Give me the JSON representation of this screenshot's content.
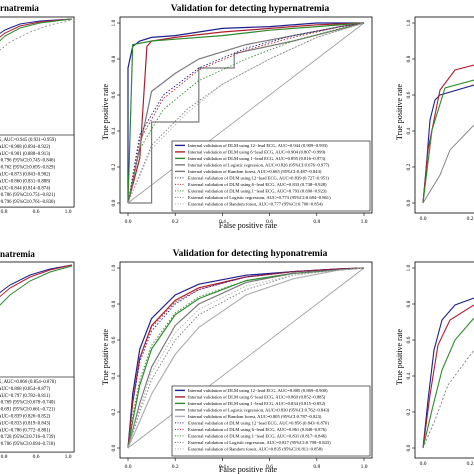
{
  "figure": {
    "panels": [
      {
        "id": "left-top",
        "title": "rnatremia",
        "xticks": [
          "0.8",
          "0.6",
          "1.0"
        ],
        "legend": [
          "G, AUC=0.945 (0.931~0.959)",
          "AUC=0.908 (0.894~0.922)",
          "AUC=0.901 (0.888~0.913)",
          "=0.796 (95%CI:0.745~0.846)",
          "=0.762 (95%CI:0.695~0.829)",
          "AUC=0.873 (0.843~0.902)",
          "AUC=0.860 (0.831~0.888)",
          "AUC=0.844 (0.814~0.874)",
          "=0.786 (95%CI:0.751~0.821)",
          "=0.796 (95%CI:0.761~0.830)"
        ]
      },
      {
        "id": "left-bottom",
        "title": "natremia",
        "xticks": [
          "0.8",
          "0.6",
          "1.0"
        ],
        "legend": [
          "G, AUC=0.866 (0.854~0.878)",
          "AUC=0.868 (0.854~0.877)",
          "AUC=0.797 (0.782~0.811)",
          "=0.769 (95%CI:0.678~0.740)",
          "=0.691 (95%CI:0.661~0.721)",
          "AUC=0.839 (0.826~0.852)",
          "AUC=0.833 (0.819~0.843)",
          "AUC=0.786 (0.772~0.801)",
          "=0.728 (95%CI:0.716~0.739)",
          "=0.706 (95%CI:0.694~0.718)"
        ]
      },
      {
        "id": "center-top",
        "title": "Validation for detecting hypernatremia",
        "xlabel": "False positive rate",
        "ylabel": "True positive rate",
        "xticks": [
          "0.0",
          "0.2",
          "0.4",
          "0.6",
          "0.8",
          "1.0"
        ],
        "yticks": [
          "0.0",
          "0.2",
          "0.4",
          "0.6",
          "0.8",
          "1.0"
        ],
        "legend": [
          "Internal validation of DLM using 12−lead ECG, AUC=0.944 (0.909~0.993)",
          "Internal validation of DLM using 6−lead ECG, AUC=0.904 (0.807~0.999)",
          "Internal validation of DLM using 1−lead ECG, AUC=0.895 (0.816~0.973)",
          "Internal validation of Logistic regression, AUC=0.826 (95%CI:0.676~0.977)",
          "Internal validation of Random forest, AUC=0.665 (95%CI:0.487~0.843)",
          "External validation of DLM using 12−lead ECG, AUC=0.839 (0.727~0.951)",
          "External validation of DLM using 6−lead ECG, AUC=0.833 (0.738~0.928)",
          "External validation of DLM using 1−lead ECG, AUC=0.793 (0.690~0.923)",
          "External validation of Logistic regression, AUC=0.773 (95%CI:0.684~0.861)",
          "External validation of Random forest, AUC=0.777 (95%CI:0.700~0.854)"
        ]
      },
      {
        "id": "center-bottom",
        "title": "Validation for detecting hyponatremia",
        "xlabel": "False positive rate",
        "ylabel": "True positive rate",
        "xticks": [
          "0.0",
          "0.2",
          "0.4",
          "0.6",
          "0.8",
          "1.0"
        ],
        "yticks": [
          "0.0",
          "0.2",
          "0.4",
          "0.6",
          "0.8",
          "1.0"
        ],
        "legend": [
          "Internal validation of DLM using 12−lead ECG, AUC=0.885 (0.869~0.900)",
          "Internal validation of DLM using 6−lead ECG, AUC=0.869 (0.852~0.885)",
          "Internal validation of DLM using 1−lead ECG, AUC=0.834 (0.815~0.852)",
          "Internal validation of Logistic regression, AUC=0.830 (95%CI:0.762~0.843)",
          "Internal validation of Random forest, AUC=0.805 (95%CI:0.787~0.823)",
          "External validation of DLM using 12−lead ECG, AUC=0.856 (0.843~0.870)",
          "External validation of DLM using 6−lead ECG, AUC=0.861 (0.848~0.876)",
          "External validation of DLM using 1−lead ECG, AUC=0.831 (0.817~0.846)",
          "External validation of Logistic regression, AUC=0.817 (95%CI:0.798~0.843)",
          "External validation of Random forest, AUC=0.835 (95%CI:0.811~0.858)"
        ]
      },
      {
        "id": "right-top",
        "ylabel": "True positive rate",
        "yticks": [
          "0.0",
          "0.2",
          "0.4",
          "0.6",
          "0.8",
          "1.0"
        ],
        "xticks": [
          "0.0",
          "0.2"
        ]
      },
      {
        "id": "right-bottom",
        "ylabel": "True positive rate",
        "yticks": [
          "0.0",
          "0.2",
          "0.4",
          "0.6",
          "0.8",
          "1.0"
        ],
        "xticks": [
          "0.0",
          "0.2"
        ]
      }
    ]
  },
  "colors": {
    "dlm_12_lead": "#1f1f8f",
    "dlm_6_lead": "#b01f2f",
    "dlm_1_lead": "#2e8b2e",
    "logistic_regression": "#7a7a7a",
    "random_forest": "#b0b0b0",
    "reference": "#9a9a9a"
  },
  "chart_data": [
    {
      "type": "line",
      "title": "Validation for detecting hypernatremia",
      "xlabel": "False positive rate",
      "ylabel": "True positive rate",
      "xlim": [
        0,
        1
      ],
      "ylim": [
        0,
        1
      ],
      "grid": false,
      "legend_position": "bottom-right",
      "series": [
        {
          "name": "Internal validation of DLM using 12−lead ECG, AUC=0.944 (0.909~0.993)",
          "color": "#1f1f8f",
          "dash": "solid",
          "x": [
            0,
            0,
            0.02,
            0.05,
            0.1,
            0.2,
            0.4,
            0.6,
            0.8,
            1.0
          ],
          "y": [
            0,
            0.75,
            0.87,
            0.9,
            0.92,
            0.93,
            0.97,
            0.98,
            1.0,
            1.0
          ]
        },
        {
          "name": "Internal validation of DLM using 6−lead ECG, AUC=0.904 (0.807~0.999)",
          "color": "#b01f2f",
          "dash": "solid",
          "x": [
            0,
            0.05,
            0.08,
            0.1,
            0.2,
            0.4,
            0.6,
            0.8,
            1.0
          ],
          "y": [
            0,
            0.25,
            0.87,
            0.9,
            0.92,
            0.95,
            0.97,
            0.99,
            1.0
          ]
        },
        {
          "name": "Internal validation of DLM using 1−lead ECG, AUC=0.895 (0.816~0.973)",
          "color": "#2e8b2e",
          "dash": "solid",
          "x": [
            0,
            0.02,
            0.1,
            0.2,
            0.4,
            0.6,
            0.8,
            1.0
          ],
          "y": [
            0,
            0.88,
            0.9,
            0.91,
            0.93,
            0.96,
            0.98,
            1.0
          ]
        },
        {
          "name": "Internal validation of Logistic regression, AUC=0.826 (95%CI:0.676~0.977)",
          "color": "#7a7a7a",
          "dash": "solid",
          "x": [
            0,
            0.1,
            0.2,
            0.3,
            0.5,
            0.7,
            0.9,
            1.0
          ],
          "y": [
            0,
            0.62,
            0.72,
            0.8,
            0.88,
            0.93,
            0.98,
            1.0
          ]
        },
        {
          "name": "Internal validation of Random forest, AUC=0.665 (95%CI:0.487~0.843)",
          "color": "#7a7a7a",
          "dash": "solid",
          "x": [
            0,
            0.1,
            0.1,
            0.3,
            0.3,
            0.45,
            0.45,
            0.7,
            1.0
          ],
          "y": [
            0,
            0,
            0.45,
            0.45,
            0.75,
            0.75,
            0.83,
            0.9,
            1.0
          ]
        },
        {
          "name": "External validation of DLM using 12−lead ECG, AUC=0.839 (0.727~0.951)",
          "color": "#1f1f8f",
          "dash": "dotted",
          "x": [
            0,
            0.05,
            0.15,
            0.3,
            0.5,
            0.7,
            0.9,
            1.0
          ],
          "y": [
            0,
            0.38,
            0.6,
            0.75,
            0.86,
            0.93,
            0.98,
            1.0
          ]
        },
        {
          "name": "External validation of DLM using 6−lead ECG, AUC=0.833 (0.738~0.928)",
          "color": "#b01f2f",
          "dash": "dotted",
          "x": [
            0,
            0.05,
            0.15,
            0.3,
            0.5,
            0.7,
            0.9,
            1.0
          ],
          "y": [
            0,
            0.35,
            0.58,
            0.74,
            0.85,
            0.92,
            0.98,
            1.0
          ]
        },
        {
          "name": "External validation of DLM using 1−lead ECG, AUC=0.793 (0.690~0.923)",
          "color": "#2e8b2e",
          "dash": "dotted",
          "x": [
            0,
            0.05,
            0.15,
            0.3,
            0.5,
            0.7,
            0.9,
            1.0
          ],
          "y": [
            0,
            0.3,
            0.52,
            0.68,
            0.8,
            0.9,
            0.97,
            1.0
          ]
        },
        {
          "name": "External validation of Logistic regression, AUC=0.773 (95%CI:0.684~0.861)",
          "color": "#7a7a7a",
          "dash": "dotted",
          "x": [
            0,
            0.1,
            0.25,
            0.4,
            0.6,
            0.8,
            1.0
          ],
          "y": [
            0,
            0.32,
            0.52,
            0.66,
            0.8,
            0.92,
            1.0
          ]
        },
        {
          "name": "External validation of Random forest, AUC=0.777 (95%CI:0.700~0.854)",
          "color": "#b0b0b0",
          "dash": "dotted",
          "x": [
            0,
            0.1,
            0.25,
            0.4,
            0.6,
            0.8,
            1.0
          ],
          "y": [
            0,
            0.3,
            0.5,
            0.66,
            0.8,
            0.92,
            1.0
          ]
        }
      ]
    },
    {
      "type": "line",
      "title": "Validation for detecting hyponatremia",
      "xlabel": "False positive rate",
      "ylabel": "True positive rate",
      "xlim": [
        0,
        1
      ],
      "ylim": [
        0,
        1
      ],
      "grid": false,
      "legend_position": "bottom-right",
      "series": [
        {
          "name": "Internal validation of DLM using 12−lead ECG, AUC=0.885 (0.869~0.900)",
          "color": "#1f1f8f",
          "dash": "solid",
          "x": [
            0,
            0.02,
            0.05,
            0.1,
            0.2,
            0.3,
            0.5,
            0.7,
            0.9,
            1.0
          ],
          "y": [
            0,
            0.3,
            0.55,
            0.72,
            0.85,
            0.91,
            0.96,
            0.98,
            0.995,
            1.0
          ]
        },
        {
          "name": "Internal validation of DLM using 6−lead ECG, AUC=0.869 (0.852~0.885)",
          "color": "#b01f2f",
          "dash": "solid",
          "x": [
            0,
            0.02,
            0.05,
            0.1,
            0.2,
            0.3,
            0.5,
            0.7,
            0.9,
            1.0
          ],
          "y": [
            0,
            0.25,
            0.5,
            0.68,
            0.82,
            0.89,
            0.95,
            0.98,
            0.995,
            1.0
          ]
        },
        {
          "name": "Internal validation of DLM using 1−lead ECG, AUC=0.834 (0.815~0.852)",
          "color": "#2e8b2e",
          "dash": "solid",
          "x": [
            0,
            0.02,
            0.05,
            0.1,
            0.2,
            0.3,
            0.5,
            0.7,
            0.9,
            1.0
          ],
          "y": [
            0,
            0.15,
            0.35,
            0.55,
            0.74,
            0.83,
            0.93,
            0.97,
            0.99,
            1.0
          ]
        },
        {
          "name": "Internal validation of Logistic regression, AUC=0.830 (95%CI:0.762~0.843)",
          "color": "#7a7a7a",
          "dash": "solid",
          "x": [
            0,
            0.05,
            0.1,
            0.2,
            0.3,
            0.5,
            0.7,
            0.9,
            1.0
          ],
          "y": [
            0,
            0.25,
            0.45,
            0.68,
            0.8,
            0.92,
            0.97,
            0.99,
            1.0
          ]
        },
        {
          "name": "Internal validation of Random forest, AUC=0.805 (95%CI:0.787~0.823)",
          "color": "#b0b0b0",
          "dash": "solid",
          "x": [
            0,
            0.05,
            0.1,
            0.2,
            0.3,
            0.5,
            0.7,
            0.9,
            1.0
          ],
          "y": [
            0,
            0.15,
            0.3,
            0.52,
            0.67,
            0.85,
            0.94,
            0.99,
            1.0
          ]
        },
        {
          "name": "External validation of DLM using 12−lead ECG, AUC=0.856 (0.843~0.870)",
          "color": "#1f1f8f",
          "dash": "dotted",
          "x": [
            0,
            0.02,
            0.05,
            0.1,
            0.2,
            0.3,
            0.5,
            0.7,
            0.9,
            1.0
          ],
          "y": [
            0,
            0.25,
            0.48,
            0.65,
            0.8,
            0.88,
            0.95,
            0.98,
            0.995,
            1.0
          ]
        },
        {
          "name": "External validation of DLM using 6−lead ECG, AUC=0.861 (0.848~0.876)",
          "color": "#b01f2f",
          "dash": "dotted",
          "x": [
            0,
            0.02,
            0.05,
            0.1,
            0.2,
            0.3,
            0.5,
            0.7,
            0.9,
            1.0
          ],
          "y": [
            0,
            0.26,
            0.5,
            0.67,
            0.81,
            0.88,
            0.95,
            0.98,
            0.995,
            1.0
          ]
        },
        {
          "name": "External validation of DLM using 1−lead ECG, AUC=0.831 (0.817~0.846)",
          "color": "#2e8b2e",
          "dash": "dotted",
          "x": [
            0,
            0.02,
            0.05,
            0.1,
            0.2,
            0.3,
            0.5,
            0.7,
            0.9,
            1.0
          ],
          "y": [
            0,
            0.18,
            0.38,
            0.57,
            0.75,
            0.84,
            0.93,
            0.97,
            0.99,
            1.0
          ]
        },
        {
          "name": "External validation of Logistic regression, AUC=0.817 (95%CI:0.798~0.843)",
          "color": "#7a7a7a",
          "dash": "dotted",
          "x": [
            0,
            0.05,
            0.1,
            0.2,
            0.3,
            0.5,
            0.7,
            0.9,
            1.0
          ],
          "y": [
            0,
            0.2,
            0.38,
            0.6,
            0.74,
            0.88,
            0.96,
            0.99,
            1.0
          ]
        },
        {
          "name": "External validation of Random forest, AUC=0.835 (95%CI:0.811~0.858)",
          "color": "#b0b0b0",
          "dash": "dotted",
          "x": [
            0,
            0.05,
            0.1,
            0.2,
            0.3,
            0.5,
            0.7,
            0.9,
            1.0
          ],
          "y": [
            0,
            0.22,
            0.42,
            0.64,
            0.77,
            0.9,
            0.96,
            0.99,
            1.0
          ]
        }
      ]
    }
  ]
}
